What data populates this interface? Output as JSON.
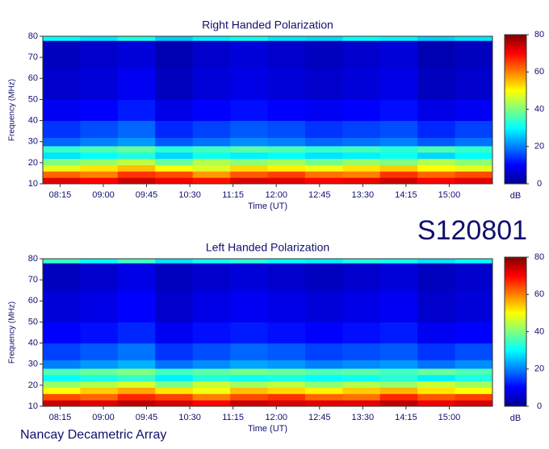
{
  "chart_data": [
    {
      "type": "heatmap",
      "title": "Right Handed Polarization",
      "xlabel": "Time (UT)",
      "ylabel": "Frequency (MHz)",
      "colorbar_label": "dB",
      "xlim": [
        477,
        945
      ],
      "ylim": [
        10,
        80
      ],
      "clim": [
        0,
        80
      ],
      "xticks": [
        {
          "value": 495,
          "label": "08:15"
        },
        {
          "value": 540,
          "label": "09:00"
        },
        {
          "value": 585,
          "label": "09:45"
        },
        {
          "value": 630,
          "label": "10:30"
        },
        {
          "value": 675,
          "label": "11:15"
        },
        {
          "value": 720,
          "label": "12:00"
        },
        {
          "value": 765,
          "label": "12:45"
        },
        {
          "value": 810,
          "label": "13:30"
        },
        {
          "value": 855,
          "label": "14:15"
        },
        {
          "value": 900,
          "label": "15:00"
        }
      ],
      "yticks": [
        10,
        20,
        30,
        40,
        50,
        60,
        70,
        80
      ],
      "cticks": [
        0,
        20,
        40,
        60,
        80
      ],
      "x_edges": [
        477,
        516,
        555,
        594,
        633,
        672,
        711,
        750,
        789,
        828,
        867,
        906,
        945
      ],
      "y_edges": [
        10,
        13,
        16,
        19,
        22,
        25,
        28,
        32,
        40,
        50,
        65,
        78,
        80
      ],
      "values": [
        [
          72,
          70,
          74,
          71,
          69,
          73,
          72,
          70,
          71,
          74,
          70,
          72
        ],
        [
          62,
          60,
          66,
          64,
          58,
          63,
          65,
          61,
          60,
          66,
          62,
          64
        ],
        [
          48,
          52,
          55,
          50,
          47,
          53,
          51,
          49,
          52,
          54,
          50,
          48
        ],
        [
          40,
          42,
          45,
          38,
          44,
          41,
          43,
          39,
          42,
          40,
          44,
          41
        ],
        [
          28,
          30,
          32,
          27,
          31,
          29,
          30,
          28,
          29,
          31,
          27,
          30
        ],
        [
          34,
          36,
          38,
          33,
          35,
          37,
          36,
          34,
          35,
          33,
          36,
          34
        ],
        [
          18,
          20,
          22,
          17,
          19,
          21,
          20,
          18,
          19,
          20,
          17,
          19
        ],
        [
          14,
          16,
          18,
          13,
          15,
          17,
          16,
          14,
          15,
          16,
          13,
          15
        ],
        [
          9,
          10,
          12,
          8,
          10,
          11,
          10,
          9,
          10,
          11,
          8,
          9
        ],
        [
          6,
          7,
          9,
          5,
          7,
          8,
          7,
          6,
          7,
          8,
          5,
          6
        ],
        [
          5,
          6,
          7,
          4,
          6,
          7,
          6,
          5,
          6,
          7,
          4,
          5
        ],
        [
          30,
          28,
          32,
          26,
          29,
          31,
          28,
          27,
          30,
          29,
          26,
          28
        ]
      ]
    },
    {
      "type": "heatmap",
      "title": "Left Handed Polarization",
      "xlabel": "Time (UT)",
      "ylabel": "Frequency (MHz)",
      "colorbar_label": "dB",
      "xlim": [
        477,
        945
      ],
      "ylim": [
        10,
        80
      ],
      "clim": [
        0,
        80
      ],
      "xticks": [
        {
          "value": 495,
          "label": "08:15"
        },
        {
          "value": 540,
          "label": "09:00"
        },
        {
          "value": 585,
          "label": "09:45"
        },
        {
          "value": 630,
          "label": "10:30"
        },
        {
          "value": 675,
          "label": "11:15"
        },
        {
          "value": 720,
          "label": "12:00"
        },
        {
          "value": 765,
          "label": "12:45"
        },
        {
          "value": 810,
          "label": "13:30"
        },
        {
          "value": 855,
          "label": "14:15"
        },
        {
          "value": 900,
          "label": "15:00"
        }
      ],
      "yticks": [
        10,
        20,
        30,
        40,
        50,
        60,
        70,
        80
      ],
      "cticks": [
        0,
        20,
        40,
        60,
        80
      ],
      "x_edges": [
        477,
        516,
        555,
        594,
        633,
        672,
        711,
        750,
        789,
        828,
        867,
        906,
        945
      ],
      "y_edges": [
        10,
        13,
        16,
        19,
        22,
        25,
        28,
        32,
        40,
        50,
        65,
        78,
        80
      ],
      "values": [
        [
          74,
          72,
          75,
          73,
          70,
          74,
          73,
          72,
          72,
          75,
          71,
          73
        ],
        [
          64,
          62,
          67,
          65,
          60,
          64,
          66,
          62,
          61,
          67,
          63,
          65
        ],
        [
          50,
          54,
          57,
          52,
          49,
          55,
          53,
          51,
          54,
          56,
          52,
          50
        ],
        [
          42,
          44,
          47,
          40,
          46,
          43,
          45,
          41,
          44,
          42,
          46,
          43
        ],
        [
          30,
          32,
          34,
          29,
          33,
          31,
          32,
          30,
          31,
          33,
          29,
          32
        ],
        [
          36,
          38,
          40,
          35,
          37,
          39,
          38,
          36,
          37,
          35,
          38,
          36
        ],
        [
          20,
          22,
          24,
          19,
          21,
          23,
          22,
          20,
          21,
          22,
          19,
          21
        ],
        [
          15,
          17,
          19,
          14,
          16,
          18,
          17,
          15,
          16,
          17,
          14,
          16
        ],
        [
          10,
          11,
          13,
          9,
          11,
          12,
          11,
          10,
          11,
          12,
          9,
          10
        ],
        [
          7,
          8,
          10,
          6,
          8,
          9,
          8,
          7,
          8,
          9,
          6,
          7
        ],
        [
          5,
          6,
          8,
          5,
          6,
          7,
          6,
          5,
          6,
          7,
          5,
          6
        ],
        [
          34,
          30,
          35,
          28,
          31,
          33,
          30,
          29,
          32,
          31,
          28,
          30
        ]
      ]
    }
  ],
  "label": "S120801",
  "footer": "Nancay Decametric Array"
}
